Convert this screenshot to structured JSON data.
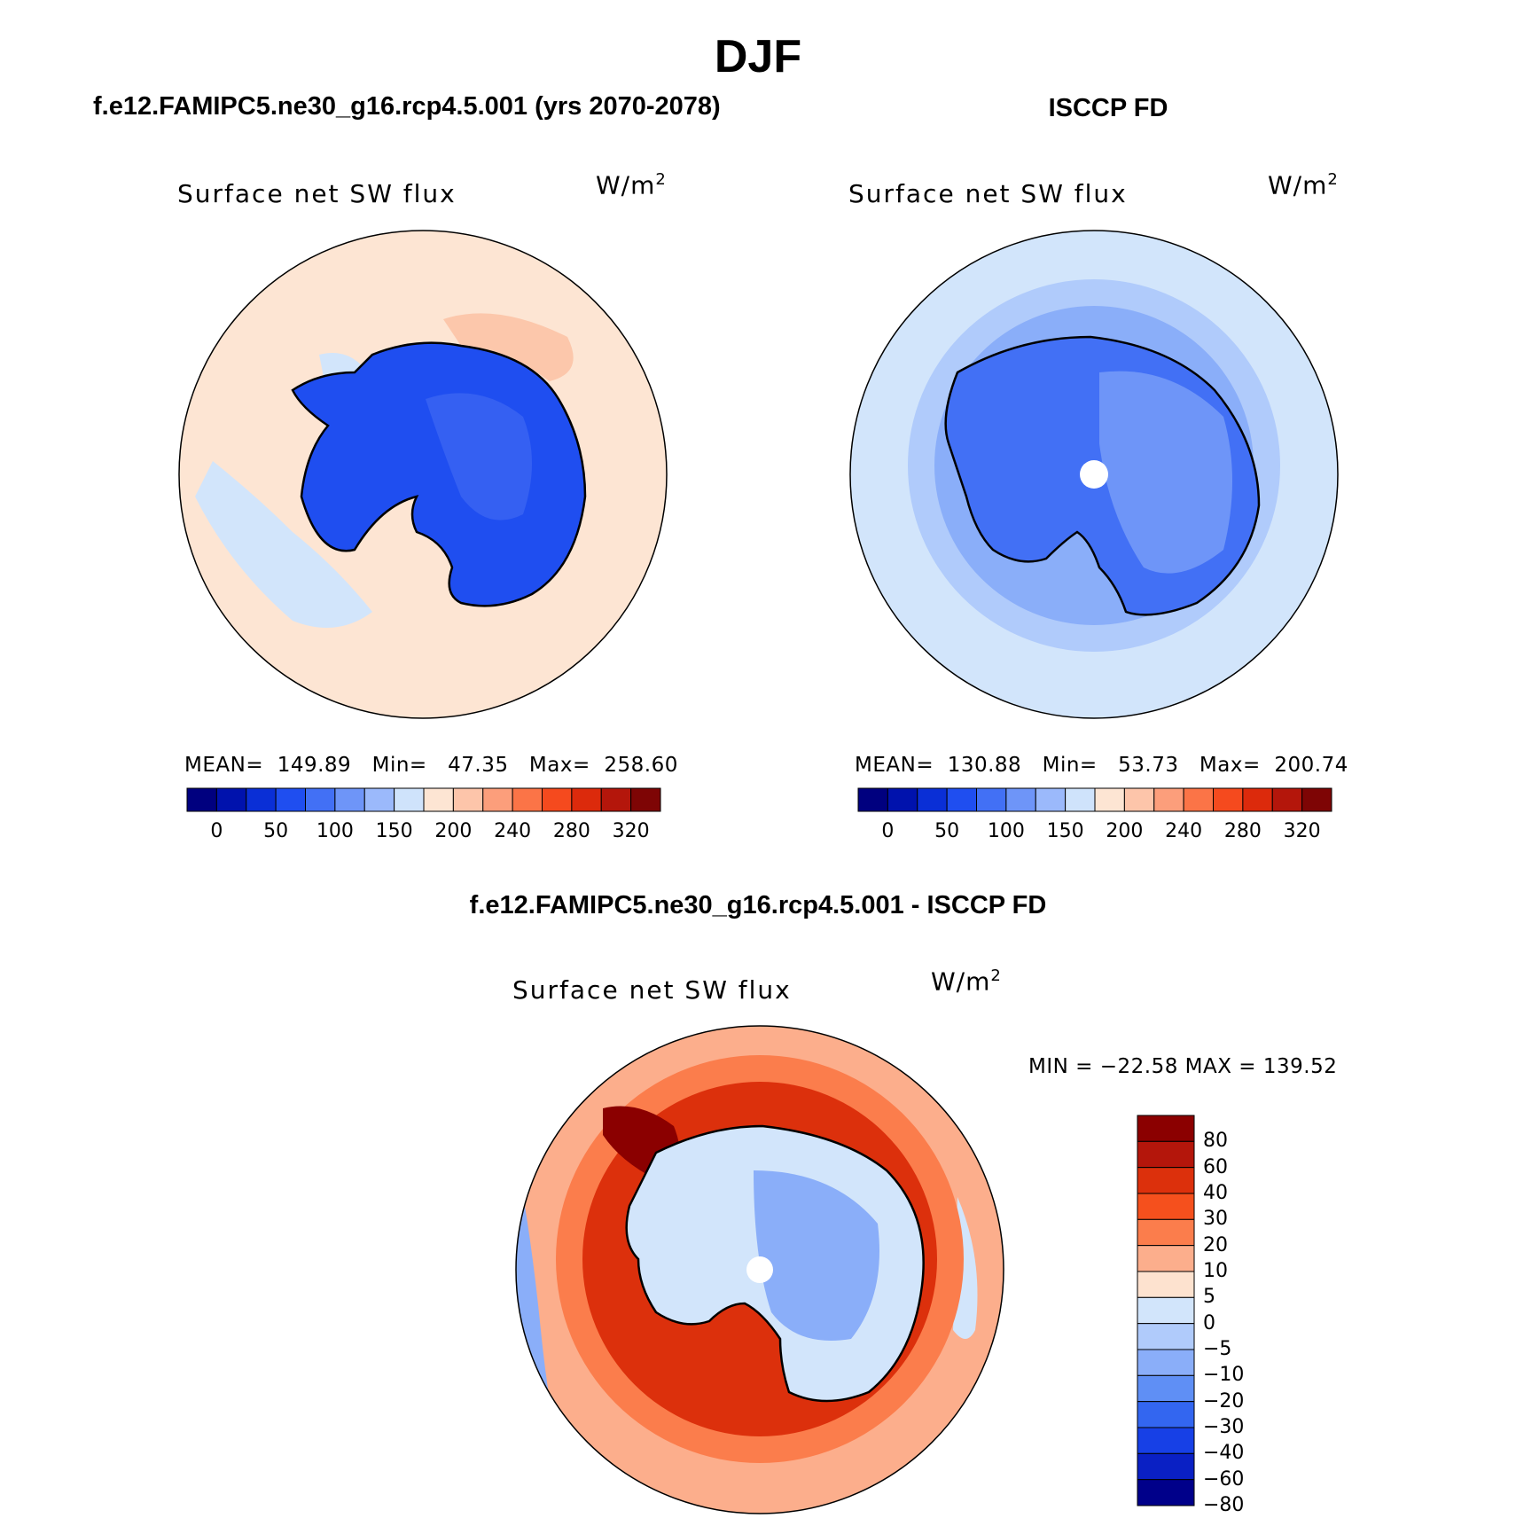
{
  "main_title": "DJF",
  "panels": {
    "model": {
      "title": "f.e12.FAMIPC5.ne30_g16.rcp4.5.001 (yrs 2070-2078)",
      "variable": "Surface net SW flux",
      "unit_base": "W/m",
      "unit_sup": "2",
      "stats": "MEAN=  149.89   Min=   47.35   Max=  258.60"
    },
    "obs": {
      "title": "ISCCP FD",
      "variable": "Surface net SW flux",
      "unit_base": "W/m",
      "unit_sup": "2",
      "stats": "MEAN=  130.88   Min=   53.73   Max=  200.74"
    },
    "diff": {
      "title": "f.e12.FAMIPC5.ne30_g16.rcp4.5.001 - ISCCP FD",
      "variable": "Surface net SW flux",
      "unit_base": "W/m",
      "unit_sup": "2",
      "stats": "MIN = −22.58 MAX = 139.52"
    }
  },
  "colorbar_main": {
    "colors": [
      "#00007f",
      "#0012ad",
      "#0a2fd6",
      "#1f4ef0",
      "#4270f5",
      "#6e95f8",
      "#9bb9fb",
      "#cfe3fb",
      "#fde5d3",
      "#fdc5aa",
      "#fc9e7b",
      "#fb7447",
      "#f54a1e",
      "#dc2a0c",
      "#b4160b",
      "#7e0505"
    ],
    "ticks": [
      "0",
      "50",
      "100",
      "150",
      "200",
      "240",
      "280",
      "320"
    ]
  },
  "colorbar_diff": {
    "colors_top_to_bottom": [
      "#8b0000",
      "#b4160b",
      "#dc300c",
      "#f5501d",
      "#fb7d4c",
      "#fcae8c",
      "#fde2cf",
      "#d2e5fb",
      "#b0cbfb",
      "#8aaef9",
      "#5f8ff5",
      "#3366f0",
      "#1740e6",
      "#0a20c4",
      "#00008a"
    ],
    "ticks": [
      "80",
      "60",
      "40",
      "30",
      "20",
      "10",
      "5",
      "0",
      "−5",
      "−10",
      "−20",
      "−30",
      "−40",
      "−60",
      "−80"
    ]
  },
  "map_colors": {
    "ocean_model": "#fde5d3",
    "ice_model": "#1f4ef0",
    "ocean_obs": "#d2e5fb",
    "ice_obs": "#4270f5",
    "diff_ring": "#dc300c",
    "diff_center": "#8aaef9"
  }
}
